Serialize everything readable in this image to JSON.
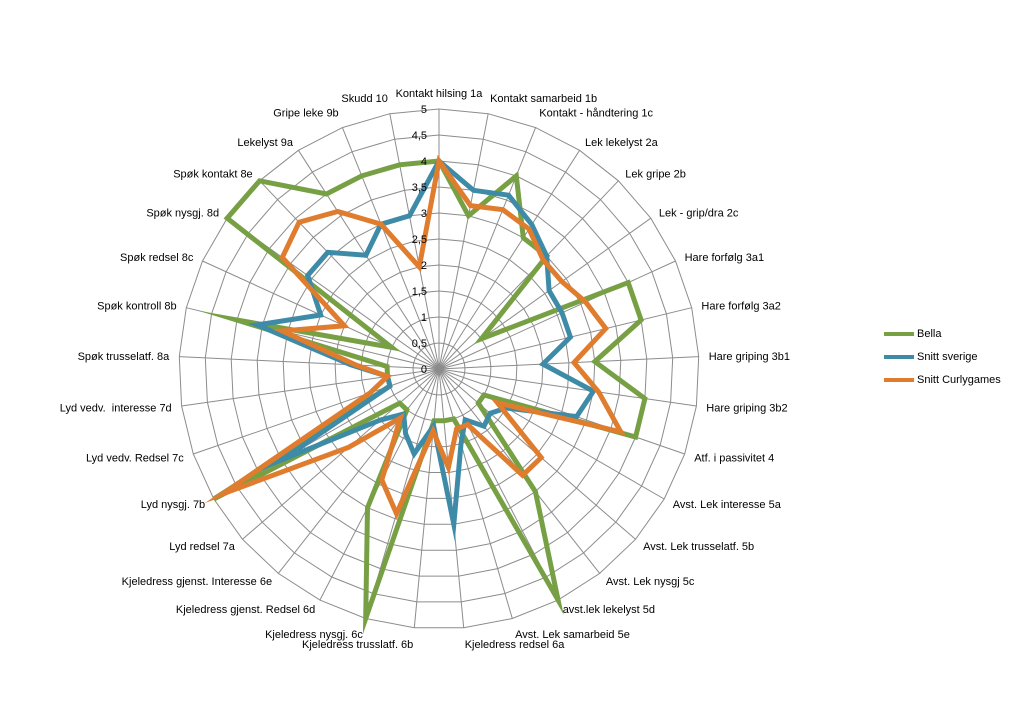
{
  "chart_data": {
    "type": "radar",
    "title": "",
    "rlim": [
      0,
      5
    ],
    "ticks": [
      "0",
      "0,5",
      "1",
      "1,5",
      "2",
      "2,5",
      "3",
      "3,5",
      "4",
      "4,5",
      "5"
    ],
    "tick_values": [
      0,
      0.5,
      1,
      1.5,
      2,
      2.5,
      3,
      3.5,
      4,
      4.5,
      5
    ],
    "grid": true,
    "legend_position": "right",
    "categories": [
      "Kontakt hilsing 1a",
      "Kontakt samarbeid 1b",
      "Kontakt - håndtering 1c",
      "Lek lekelyst 2a",
      "Lek gripe 2b",
      "Lek - grip/dra 2c",
      "Hare forfølg 3a1",
      "Hare forfølg 3a2",
      "Hare griping 3b1",
      "Hare griping 3b2",
      "Atf. i passivitet 4",
      "Avst. Lek interesse 5a",
      "Avst. Lek trusselatf. 5b",
      "Avst. Lek nysgj 5c",
      "avst.lek lekelyst 5d",
      "Avst. Lek samarbeid 5e",
      "Kjeledress redsel 6a",
      "Kjeledress trusslatf. 6b",
      "Kjeledress nysgj. 6c",
      "Kjeledress gjenst. Redsel 6d",
      "Kjeledress gjenst. Interesse 6e",
      "Lyd redsel 7a",
      "Lyd nysgj. 7b",
      "Lyd vedv. Redsel 7c",
      "Lyd vedv.  interesse 7d",
      "Spøk trusselatf. 8a",
      "Spøk kontroll 8b",
      "Spøk redsel 8c",
      "Spøk nysgj. 8d",
      "Spøk kontakt 8e",
      "Lekelyst 9a",
      "Gripe leke 9b",
      "Skudd 10"
    ],
    "series": [
      {
        "name": "Bella",
        "color": "#77A045",
        "values": [
          4,
          3,
          4,
          3,
          3,
          1,
          4,
          4,
          3,
          4,
          4,
          1,
          1,
          3,
          5,
          1,
          1,
          1,
          5,
          3,
          1,
          1,
          5,
          1,
          1,
          1,
          4,
          1,
          5,
          5,
          4,
          4,
          4
        ]
      },
      {
        "name": "Snitt sverige",
        "color": "#3E8BA8",
        "values": [
          4,
          3.5,
          3.6,
          3.3,
          3,
          2.6,
          2.6,
          2.6,
          2,
          3,
          2.8,
          1.5,
          1.3,
          1.4,
          1.1,
          1.5,
          3,
          1.1,
          1.7,
          1.4,
          1.1,
          1.5,
          3.5,
          1,
          1,
          1.7,
          3.6,
          2.5,
          3.1,
          3.1,
          2.6,
          3,
          3
        ]
      },
      {
        "name": "Snitt Curlygames",
        "color": "#E07C2E",
        "values": [
          4,
          3.2,
          3.3,
          3.2,
          2.9,
          2.9,
          3.1,
          3.3,
          2.6,
          3.1,
          3.7,
          1.3,
          2.6,
          2.6,
          1.2,
          1.2,
          1.9,
          1.2,
          2.9,
          2.4,
          1.2,
          2.3,
          4.8,
          1.4,
          1,
          1.6,
          3.1,
          2,
          3.7,
          3.9,
          3.6,
          3,
          2
        ]
      }
    ]
  }
}
